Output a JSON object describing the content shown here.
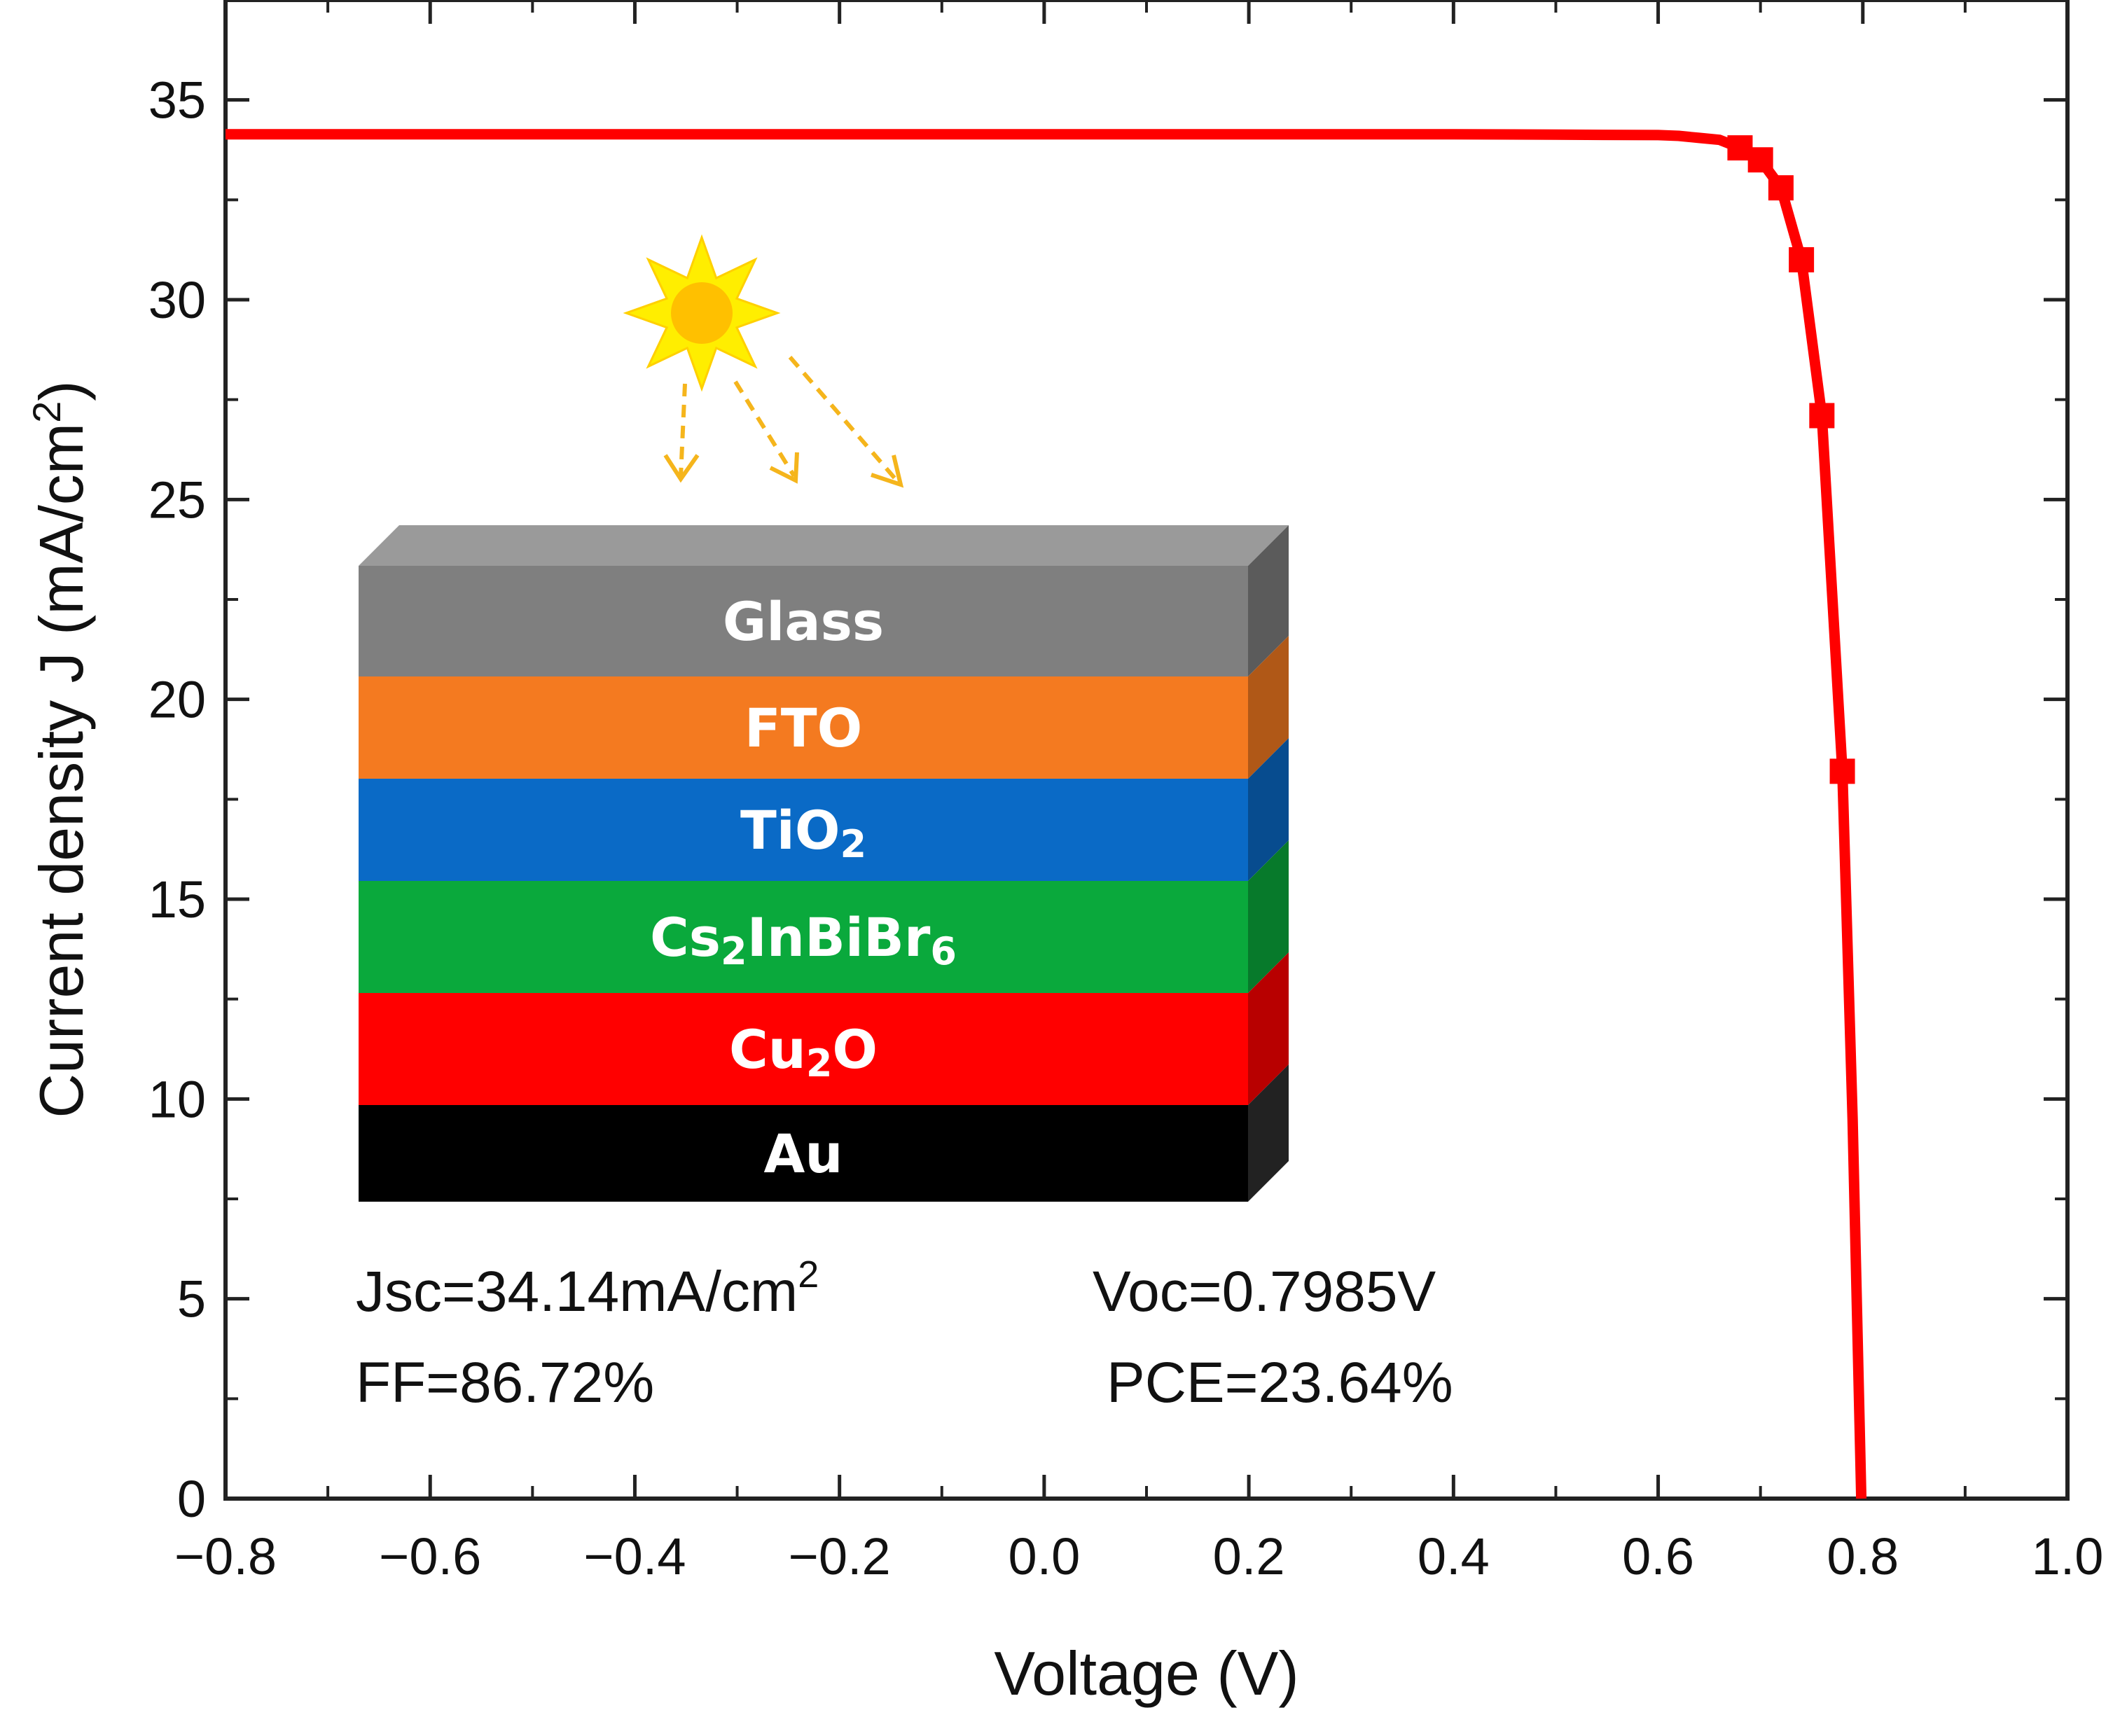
{
  "chart_data": {
    "type": "line",
    "xlabel": "Voltage (V)",
    "ylabel_main": "Current density J (mA/cm",
    "ylabel_sup": "2",
    "ylabel_end": ")",
    "xlim": [
      -0.8,
      1.0
    ],
    "ylim": [
      0,
      37.5
    ],
    "x_ticks": [
      "−0.8",
      "−0.6",
      "−0.4",
      "−0.2",
      "0.0",
      "0.2",
      "0.4",
      "0.6",
      "0.8",
      "1.0"
    ],
    "x_tick_values": [
      -0.8,
      -0.6,
      -0.4,
      -0.2,
      0.0,
      0.2,
      0.4,
      0.6,
      0.8,
      1.0
    ],
    "y_ticks": [
      "0",
      "5",
      "10",
      "15",
      "20",
      "25",
      "30",
      "35"
    ],
    "y_tick_values": [
      0,
      5,
      10,
      15,
      20,
      25,
      30,
      35
    ],
    "series": [
      {
        "color": "#ff0000",
        "x": [
          -0.8,
          -0.7,
          -0.6,
          -0.5,
          -0.4,
          -0.3,
          -0.2,
          -0.1,
          0.0,
          0.1,
          0.2,
          0.3,
          0.4,
          0.5,
          0.6,
          0.62,
          0.64,
          0.66,
          0.68,
          0.7,
          0.72,
          0.74,
          0.76,
          0.78,
          0.79,
          0.7985
        ],
        "y": [
          34.14,
          34.14,
          34.14,
          34.14,
          34.14,
          34.14,
          34.14,
          34.14,
          34.14,
          34.14,
          34.14,
          34.14,
          34.14,
          34.13,
          34.12,
          34.1,
          34.05,
          34.0,
          33.8,
          33.5,
          32.8,
          31.0,
          27.1,
          18.2,
          9.5,
          0.0
        ],
        "marker_x": [
          0.68,
          0.7,
          0.72,
          0.74,
          0.76,
          0.78
        ],
        "marker_y": [
          33.8,
          33.5,
          32.8,
          31.0,
          27.1,
          18.2
        ]
      }
    ],
    "annotations": {
      "jsc_main": "Jsc=34.14mA/cm",
      "jsc_sup": "2",
      "voc": "Voc=0.7985V",
      "ff": "FF=86.72%",
      "pce": "PCE=23.64%"
    },
    "device_layers": [
      {
        "base": "Glass",
        "sub": "",
        "tail": "",
        "color": "#7f7f7f"
      },
      {
        "base": "FTO",
        "sub": "",
        "tail": "",
        "color": "#f47a20"
      },
      {
        "base": "TiO",
        "sub": "2",
        "tail": "",
        "color": "#0a6ac6"
      },
      {
        "base": "Cs",
        "sub": "2",
        "tail": "InBiBr",
        "sub2": "6",
        "color": "#0aa93c"
      },
      {
        "base": "Cu",
        "sub": "2",
        "tail": "O",
        "color": "#ff0000"
      },
      {
        "base": "Au",
        "sub": "",
        "tail": "",
        "color": "#000000"
      }
    ],
    "grid": false,
    "legend": "none"
  }
}
